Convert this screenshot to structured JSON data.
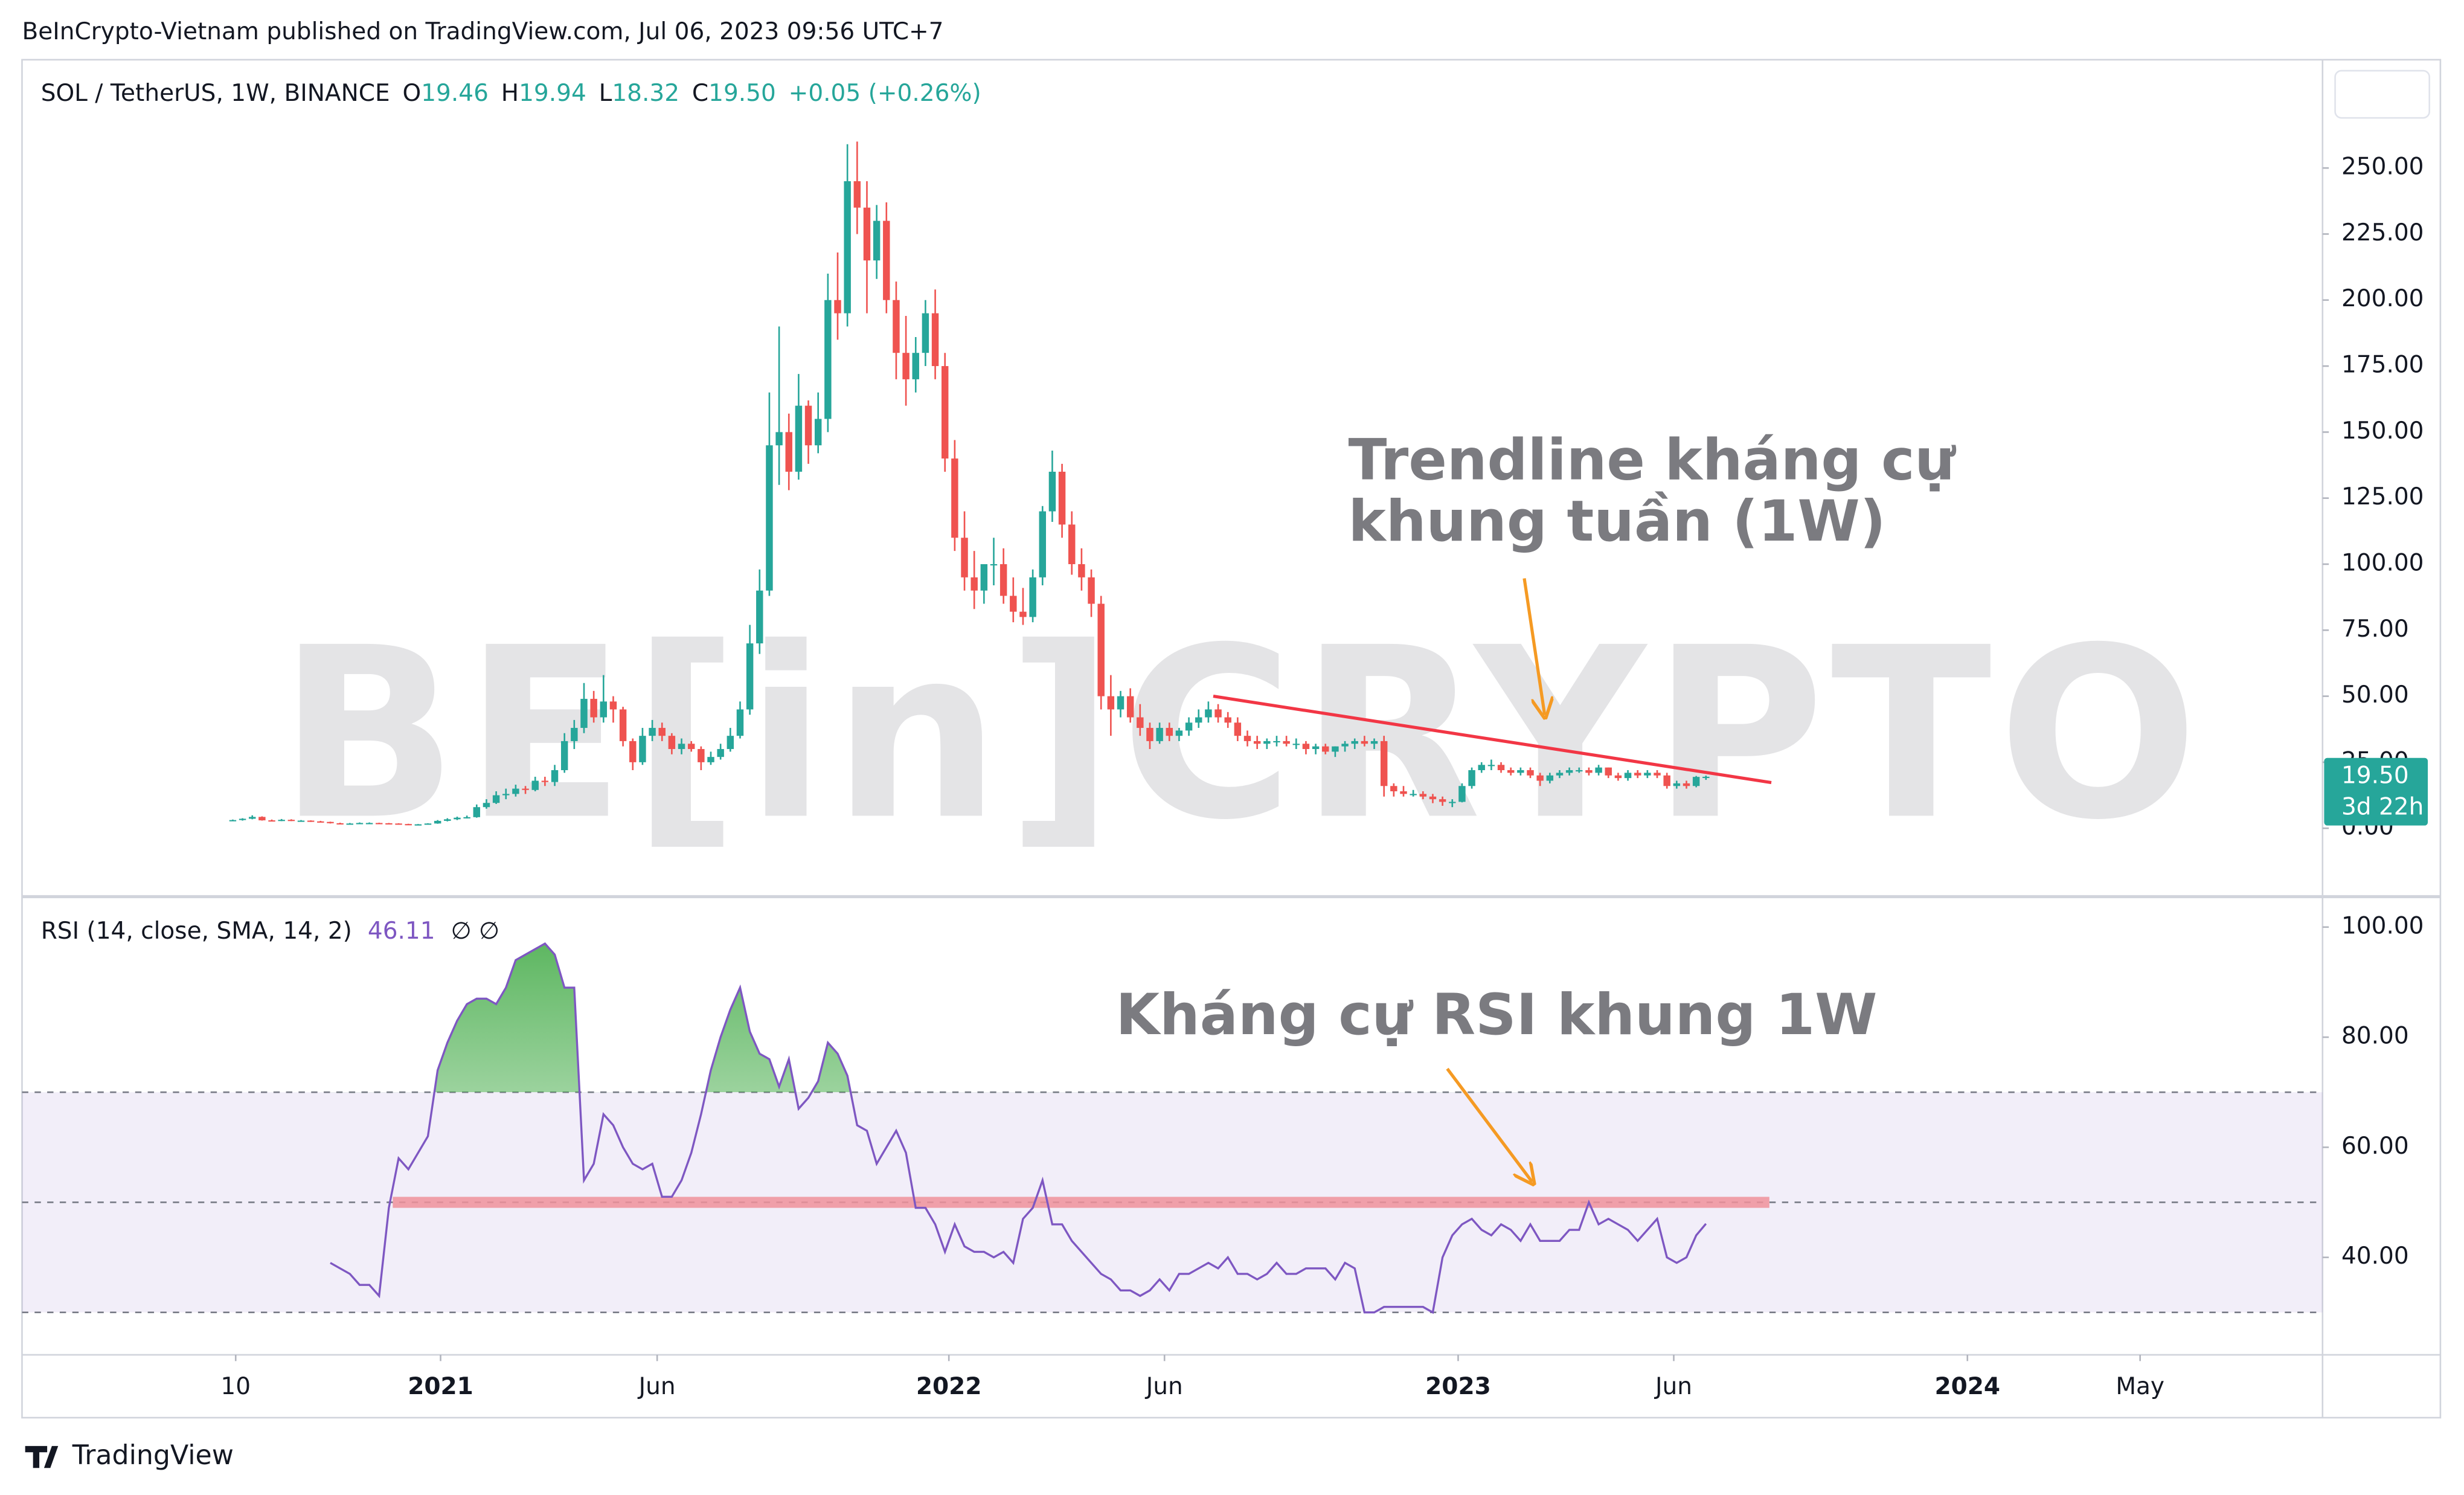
{
  "header": "BeInCrypto-Vietnam published on TradingView.com, Jul 06, 2023 09:56 UTC+7",
  "footer": "TradingView",
  "chart_data": [
    {
      "type": "candlestick",
      "title": "SOL / TetherUS, 1W, BINANCE",
      "legend": [
        {
          "key": "O",
          "value": "19.46"
        },
        {
          "key": "H",
          "value": "19.94"
        },
        {
          "key": "L",
          "value": "18.32"
        },
        {
          "key": "C",
          "value": "19.50"
        }
      ],
      "change": "+0.05 (+0.26%)",
      "open": [
        2.9,
        3.1,
        3.6,
        4.3,
        3.0,
        2.9,
        3.2,
        2.9,
        2.9,
        2.6,
        2.4,
        1.9,
        1.7,
        1.8,
        2.0,
        2.0,
        1.9,
        1.8,
        1.6,
        1.5,
        1.5,
        1.8,
        2.8,
        3.4,
        4.0,
        4.2,
        8.0,
        9.6,
        12.5,
        13,
        15,
        14.5,
        18,
        17.5,
        22,
        33,
        38,
        49,
        42,
        48,
        45,
        33,
        25,
        35,
        38,
        35,
        30,
        32,
        30,
        25,
        27,
        30,
        35,
        45,
        70,
        90,
        145,
        150,
        135,
        160,
        145,
        155,
        200,
        195,
        245,
        235,
        215,
        230,
        200,
        180,
        170,
        180,
        195,
        175,
        140,
        110,
        95,
        90,
        100,
        100,
        88,
        82,
        80,
        95,
        120,
        135,
        115,
        100,
        95,
        85,
        50,
        45,
        50,
        42,
        38,
        33,
        38,
        35,
        37,
        40,
        42,
        45,
        42,
        40,
        35,
        33,
        32,
        33,
        33,
        32,
        32,
        30,
        31,
        29,
        31,
        32,
        33,
        32,
        33,
        16,
        14,
        13,
        13,
        12,
        11,
        10,
        10,
        16,
        22,
        24,
        24,
        22,
        21,
        22,
        20,
        18,
        20,
        21,
        22,
        22,
        21,
        23,
        20,
        19,
        21,
        20,
        21,
        20,
        16,
        17,
        16,
        19.46
      ],
      "high": [
        3.3,
        3.8,
        4.9,
        4.5,
        3.3,
        3.5,
        3.4,
        3.1,
        3.0,
        2.8,
        2.5,
        2.1,
        2.0,
        2.2,
        2.2,
        2.1,
        2.0,
        1.9,
        1.7,
        1.6,
        1.9,
        3.1,
        3.8,
        4.4,
        4.8,
        9.0,
        11,
        14,
        15,
        16.5,
        16,
        19.5,
        19.5,
        24,
        36,
        41,
        55,
        52,
        58,
        50,
        46,
        34,
        38,
        41,
        40,
        36,
        34,
        33,
        31,
        29,
        32,
        38,
        48,
        77,
        98,
        165,
        190,
        157,
        172,
        162,
        165,
        210,
        218,
        259,
        260,
        245,
        236,
        237,
        207,
        194,
        186,
        200,
        204,
        180,
        147,
        120,
        105,
        100,
        110,
        106,
        95,
        91,
        98,
        122,
        143,
        138,
        120,
        106,
        98,
        88,
        58,
        52,
        53,
        47,
        40,
        40,
        40,
        38,
        42,
        45,
        48,
        47,
        44,
        42,
        37,
        35,
        34,
        35,
        35,
        34,
        33,
        32,
        32,
        31,
        33,
        34,
        35,
        34,
        35,
        17,
        16,
        14.5,
        14,
        13,
        12,
        11,
        17,
        23,
        25,
        26,
        25,
        23,
        23,
        23,
        21,
        21,
        22,
        23,
        23,
        23,
        24,
        23,
        21,
        22,
        22,
        22,
        22,
        21,
        18,
        18,
        19.8,
        19.94
      ],
      "low": [
        2.7,
        2.9,
        3.4,
        2.9,
        2.6,
        2.7,
        2.7,
        2.7,
        2.4,
        2.2,
        1.8,
        1.5,
        1.6,
        1.7,
        1.8,
        1.8,
        1.7,
        1.5,
        1.4,
        1.4,
        1.4,
        1.7,
        2.6,
        3.1,
        3.7,
        4.0,
        7.4,
        9.2,
        11,
        12,
        13,
        14,
        16,
        16,
        21,
        30,
        36,
        40,
        40,
        40,
        31,
        22,
        24,
        33,
        33,
        28,
        28,
        29,
        22,
        24,
        26,
        29,
        34,
        43,
        66,
        88,
        130,
        128,
        132,
        138,
        142,
        150,
        185,
        190,
        225,
        195,
        208,
        195,
        170,
        160,
        165,
        175,
        170,
        135,
        105,
        90,
        83,
        85,
        92,
        85,
        78,
        77,
        78,
        92,
        116,
        110,
        96,
        90,
        80,
        45,
        35,
        42,
        40,
        35,
        30,
        32,
        33,
        33,
        35,
        38,
        40,
        40,
        38,
        33,
        31,
        30,
        30,
        31,
        31,
        30,
        28,
        28,
        28,
        27,
        29,
        30,
        31,
        30,
        12,
        12,
        12,
        12,
        11,
        9.5,
        8.5,
        8,
        9.8,
        15,
        21,
        22,
        21,
        20,
        20,
        19,
        16,
        17,
        19,
        20,
        21,
        20,
        20,
        19,
        18,
        18,
        19,
        19,
        19,
        15,
        15,
        15,
        15.5,
        18.32
      ],
      "close": [
        3.1,
        3.6,
        4.3,
        3.0,
        2.9,
        3.2,
        2.9,
        2.9,
        2.6,
        2.4,
        1.9,
        1.7,
        1.8,
        2.0,
        2.0,
        1.9,
        1.8,
        1.6,
        1.5,
        1.5,
        1.8,
        2.8,
        3.4,
        4.0,
        4.2,
        8.0,
        9.6,
        12.5,
        13,
        15,
        14.5,
        18,
        17.5,
        22,
        33,
        38,
        49,
        42,
        48,
        45,
        33,
        25,
        35,
        38,
        35,
        30,
        32,
        30,
        25,
        27,
        30,
        35,
        45,
        70,
        90,
        145,
        150,
        135,
        160,
        145,
        155,
        200,
        195,
        245,
        235,
        215,
        230,
        200,
        180,
        170,
        180,
        195,
        175,
        140,
        110,
        95,
        90,
        100,
        100,
        88,
        82,
        80,
        95,
        120,
        135,
        115,
        100,
        95,
        85,
        50,
        45,
        50,
        42,
        38,
        33,
        38,
        35,
        37,
        40,
        42,
        45,
        42,
        40,
        35,
        33,
        32,
        33,
        33,
        32,
        32,
        30,
        31,
        29,
        31,
        32,
        33,
        32,
        33,
        16,
        14,
        13,
        13,
        12,
        11,
        10,
        10,
        16,
        22,
        24,
        24,
        22,
        21,
        22,
        20,
        18,
        20,
        21,
        22,
        22,
        21,
        23,
        20,
        19,
        21,
        20,
        21,
        20,
        16,
        17,
        16,
        19.45,
        19.5
      ],
      "up_color": "#26a69a",
      "down_color": "#ef5350",
      "xlim": [
        -21.6,
        214.2
      ],
      "ylim": [
        -25.6,
        291
      ],
      "yticks": [
        {
          "value": 0,
          "label": "0.00"
        },
        {
          "value": 25,
          "label": "25.00"
        },
        {
          "value": 50,
          "label": "50.00"
        },
        {
          "value": 75,
          "label": "75.00"
        },
        {
          "value": 100,
          "label": "100.00"
        },
        {
          "value": 125,
          "label": "125.00"
        },
        {
          "value": 150,
          "label": "150.00"
        },
        {
          "value": 175,
          "label": "175.00"
        },
        {
          "value": 200,
          "label": "200.00"
        },
        {
          "value": 225,
          "label": "225.00"
        },
        {
          "value": 250,
          "label": "250.00"
        }
      ],
      "grid": false,
      "last_label": "19.50",
      "countdown": "3d 22h",
      "trendline": {
        "x": [
          100.5,
          157.7
        ],
        "values": [
          50,
          17.3
        ],
        "color": "#f23645"
      },
      "annotation": [
        "Trendline kháng cự",
        "khung tuần (1W)"
      ],
      "watermark": "BE[in]CRYPTO"
    },
    {
      "type": "line",
      "title": "RSI (14, close, SMA, 14, 2)",
      "value_label": "46.11",
      "extra": "∅ ∅",
      "values": [
        null,
        null,
        null,
        null,
        null,
        null,
        null,
        null,
        null,
        null,
        39,
        38,
        37,
        35,
        35,
        33,
        49,
        58,
        56,
        59,
        62,
        74,
        79,
        83,
        86,
        87,
        87,
        86,
        89,
        94,
        95,
        96,
        97,
        95,
        89,
        89,
        54,
        57,
        66,
        64,
        60,
        57,
        56,
        57,
        51,
        51,
        54,
        59,
        66,
        74,
        80,
        85,
        89,
        81,
        77,
        76,
        71,
        76,
        67,
        69,
        72,
        79,
        77,
        73,
        64,
        63,
        57,
        60,
        63,
        59,
        49,
        49,
        46,
        41,
        46,
        42,
        41,
        41,
        40,
        41,
        39,
        47,
        49,
        54,
        46,
        46,
        43,
        41,
        39,
        37,
        36,
        34,
        34,
        33,
        34,
        36,
        34,
        37,
        37,
        38,
        39,
        38,
        40,
        37,
        37,
        36,
        37,
        39,
        37,
        37,
        38,
        38,
        38,
        36,
        39,
        38,
        30,
        30,
        31,
        31,
        31,
        31,
        31,
        30,
        40,
        44,
        46,
        47,
        45,
        44,
        46,
        45,
        43,
        46,
        43,
        43,
        43,
        45,
        45,
        50,
        46,
        47,
        46,
        45,
        43,
        45,
        47,
        40,
        39,
        40,
        44,
        46.11
      ],
      "color": "#7e57c2",
      "fill_color": "#4caf50",
      "xlim": [
        -21.6,
        214.2
      ],
      "ylim": [
        22.3,
        105.1
      ],
      "yticks": [
        {
          "value": 40,
          "label": "40.00"
        },
        {
          "value": 60,
          "label": "60.00"
        },
        {
          "value": 80,
          "label": "80.00"
        },
        {
          "value": 100,
          "label": "100.00"
        }
      ],
      "levels": [
        70,
        50,
        30
      ],
      "resistance": {
        "x": [
          16.4,
          157.5
        ],
        "values": [
          50,
          50
        ],
        "color": "#f0909b"
      },
      "annotation": "Kháng cự RSI khung 1W",
      "xticks": [
        {
          "value": 0.3,
          "label": "10"
        },
        {
          "value": 21.3,
          "label": "2021"
        },
        {
          "value": 43.5,
          "label": "Jun"
        },
        {
          "value": 73.4,
          "label": "2022"
        },
        {
          "value": 95.5,
          "label": "Jun"
        },
        {
          "value": 125.6,
          "label": "2023"
        },
        {
          "value": 147.7,
          "label": "Jun"
        },
        {
          "value": 177.8,
          "label": "2024"
        },
        {
          "value": 195.5,
          "label": "May"
        }
      ]
    }
  ]
}
